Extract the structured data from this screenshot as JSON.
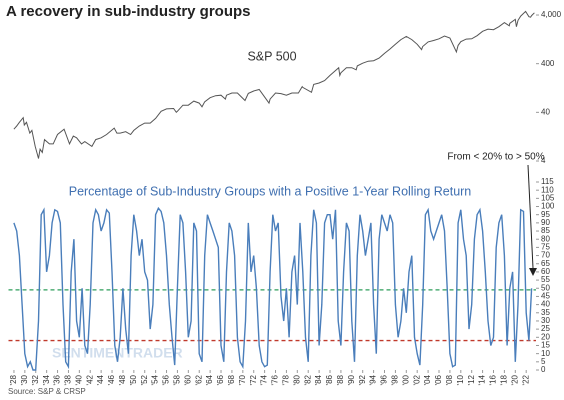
{
  "title": "A recovery in sub-industry groups",
  "source": "Source: S&P & CRSP",
  "watermark": "SENTIMENTRADER",
  "chart_data": [
    {
      "type": "line",
      "title": "S&P 500",
      "log_scale": true,
      "color": "#555555",
      "xlim": [
        1927,
        2023.8
      ],
      "ylim": [
        4,
        5000
      ],
      "yticks": [
        4,
        40,
        400,
        {
          "value": 4000,
          "label": "4,000"
        }
      ],
      "x": [
        1928,
        1928.5,
        1929,
        1929.7,
        1929.9,
        1930.3,
        1930.9,
        1931.3,
        1931.9,
        1932.5,
        1932.8,
        1933.2,
        1933.6,
        1934.5,
        1935.2,
        1936,
        1937.2,
        1938.2,
        1938.9,
        1939.5,
        1940.4,
        1941,
        1942.3,
        1943,
        1944,
        1945,
        1946.4,
        1946.9,
        1947.5,
        1948.5,
        1949.4,
        1950,
        1951,
        1952,
        1953,
        1954,
        1955,
        1956,
        1957.3,
        1957.8,
        1958,
        1959,
        1960,
        1961,
        1962,
        1962.5,
        1963,
        1964,
        1965,
        1966,
        1966.8,
        1967,
        1968,
        1969,
        1970.4,
        1971,
        1972,
        1973,
        1974.8,
        1975,
        1976,
        1977,
        1978,
        1979,
        1980.2,
        1980.9,
        1981,
        1982.6,
        1983,
        1984,
        1985,
        1986,
        1987.6,
        1987.8,
        1988,
        1989,
        1990,
        1990.8,
        1991,
        1992,
        1993,
        1994,
        1995,
        1996,
        1997,
        1998,
        1999,
        2000,
        2001,
        2002,
        2002.8,
        2003,
        2004,
        2005,
        2006,
        2007,
        2008,
        2009.2,
        2009.5,
        2010,
        2011,
        2012,
        2013,
        2014,
        2015,
        2016,
        2017,
        2018,
        2018.9,
        2019,
        2020,
        2020.2,
        2020.5,
        2021,
        2021.9,
        2022.5,
        2022.8,
        2023,
        2023.5
      ],
      "values": [
        18,
        21,
        25,
        31,
        22,
        25,
        15,
        17,
        8,
        4.5,
        7,
        6,
        11,
        9,
        9,
        14,
        18,
        9,
        13,
        12,
        9,
        10,
        8,
        11,
        12,
        14,
        19,
        15,
        15,
        16,
        14,
        17,
        21,
        24,
        24,
        30,
        42,
        47,
        48,
        40,
        42,
        56,
        56,
        68,
        62,
        52,
        66,
        80,
        88,
        90,
        75,
        90,
        100,
        100,
        70,
        98,
        110,
        118,
        62,
        75,
        100,
        97,
        90,
        100,
        100,
        135,
        130,
        103,
        150,
        160,
        180,
        230,
        330,
        230,
        260,
        330,
        330,
        300,
        360,
        410,
        450,
        460,
        520,
        650,
        800,
        1000,
        1250,
        1450,
        1250,
        1000,
        780,
        900,
        1120,
        1200,
        1300,
        1480,
        1350,
        700,
        950,
        1130,
        1280,
        1300,
        1500,
        1850,
        2050,
        2000,
        2300,
        2800,
        2400,
        2700,
        3250,
        2300,
        3100,
        3800,
        4750,
        3700,
        3600,
        3900,
        4450
      ]
    },
    {
      "type": "line",
      "title": "Percentage of Sub-Industry Groups with a Positive 1-Year Rolling Return",
      "color": "#4a7ebb",
      "title_color": "#3f6fb0",
      "xlim": [
        1927,
        2023.8
      ],
      "ylim": [
        0,
        115
      ],
      "yticks": [
        0,
        5,
        10,
        15,
        20,
        25,
        30,
        35,
        40,
        45,
        50,
        55,
        60,
        65,
        70,
        75,
        80,
        85,
        90,
        95,
        100,
        105,
        110,
        115
      ],
      "xticks": [
        {
          "value": 1928,
          "label": "'28"
        },
        {
          "value": 1930,
          "label": "'30"
        },
        {
          "value": 1932,
          "label": "'32"
        },
        {
          "value": 1934,
          "label": "'34"
        },
        {
          "value": 1936,
          "label": "'36"
        },
        {
          "value": 1938,
          "label": "'38"
        },
        {
          "value": 1940,
          "label": "'40"
        },
        {
          "value": 1942,
          "label": "'42"
        },
        {
          "value": 1944,
          "label": "'44"
        },
        {
          "value": 1946,
          "label": "'46"
        },
        {
          "value": 1948,
          "label": "'48"
        },
        {
          "value": 1950,
          "label": "'50"
        },
        {
          "value": 1952,
          "label": "'52"
        },
        {
          "value": 1954,
          "label": "'54"
        },
        {
          "value": 1956,
          "label": "'56"
        },
        {
          "value": 1958,
          "label": "'58"
        },
        {
          "value": 1960,
          "label": "'60"
        },
        {
          "value": 1962,
          "label": "'62"
        },
        {
          "value": 1964,
          "label": "'64"
        },
        {
          "value": 1966,
          "label": "'66"
        },
        {
          "value": 1968,
          "label": "'68"
        },
        {
          "value": 1970,
          "label": "'70"
        },
        {
          "value": 1972,
          "label": "'72"
        },
        {
          "value": 1974,
          "label": "'74"
        },
        {
          "value": 1976,
          "label": "'76"
        },
        {
          "value": 1978,
          "label": "'78"
        },
        {
          "value": 1980,
          "label": "'80"
        },
        {
          "value": 1982,
          "label": "'82"
        },
        {
          "value": 1984,
          "label": "'84"
        },
        {
          "value": 1986,
          "label": "'86"
        },
        {
          "value": 1988,
          "label": "'88"
        },
        {
          "value": 1990,
          "label": "'90"
        },
        {
          "value": 1992,
          "label": "'92"
        },
        {
          "value": 1994,
          "label": "'94"
        },
        {
          "value": 1996,
          "label": "'96"
        },
        {
          "value": 1998,
          "label": "'98"
        },
        {
          "value": 2000,
          "label": "'00"
        },
        {
          "value": 2002,
          "label": "'02"
        },
        {
          "value": 2004,
          "label": "'04"
        },
        {
          "value": 2006,
          "label": "'06"
        },
        {
          "value": 2008,
          "label": "'08"
        },
        {
          "value": 2010,
          "label": "'10"
        },
        {
          "value": 2012,
          "label": "'12"
        },
        {
          "value": 2014,
          "label": "'14"
        },
        {
          "value": 2016,
          "label": "'16"
        },
        {
          "value": 2018,
          "label": "'18"
        },
        {
          "value": 2020,
          "label": "'20"
        },
        {
          "value": 2022,
          "label": "'22"
        }
      ],
      "hlines": [
        {
          "value": 49,
          "color": "#2e9e5b"
        },
        {
          "value": 18,
          "color": "#c0392b"
        }
      ],
      "annotation": "From < 20% to > 50%",
      "x": [
        1928,
        1928.5,
        1929,
        1929.5,
        1930,
        1930.5,
        1931,
        1931.5,
        1932,
        1932.5,
        1933,
        1933.5,
        1934,
        1934.5,
        1935,
        1935.5,
        1936,
        1936.5,
        1937,
        1937.5,
        1938,
        1938.5,
        1939,
        1939.5,
        1940,
        1940.5,
        1941,
        1941.5,
        1942,
        1942.5,
        1943,
        1943.5,
        1944,
        1944.5,
        1945,
        1945.5,
        1946,
        1946.5,
        1947,
        1947.5,
        1948,
        1948.5,
        1949,
        1949.5,
        1950,
        1950.5,
        1951,
        1951.5,
        1952,
        1952.5,
        1953,
        1953.5,
        1954,
        1954.5,
        1955,
        1955.5,
        1956,
        1956.5,
        1957,
        1957.5,
        1958,
        1958.5,
        1959,
        1959.5,
        1960,
        1960.5,
        1961,
        1961.5,
        1962,
        1962.5,
        1963,
        1963.5,
        1964,
        1964.5,
        1965,
        1965.5,
        1966,
        1966.5,
        1967,
        1967.5,
        1968,
        1968.5,
        1969,
        1969.5,
        1970,
        1970.5,
        1971,
        1971.5,
        1972,
        1972.5,
        1973,
        1973.5,
        1974,
        1974.5,
        1975,
        1975.5,
        1976,
        1976.5,
        1977,
        1977.5,
        1978,
        1978.5,
        1979,
        1979.5,
        1980,
        1980.5,
        1981,
        1981.5,
        1982,
        1982.5,
        1983,
        1983.5,
        1984,
        1984.5,
        1985,
        1985.5,
        1986,
        1986.5,
        1987,
        1987.5,
        1988,
        1988.5,
        1989,
        1989.5,
        1990,
        1990.5,
        1991,
        1991.5,
        1992,
        1992.5,
        1993,
        1993.5,
        1994,
        1994.5,
        1995,
        1995.5,
        1996,
        1996.5,
        1997,
        1997.5,
        1998,
        1998.5,
        1999,
        1999.5,
        2000,
        2000.5,
        2001,
        2001.5,
        2002,
        2002.5,
        2003,
        2003.5,
        2004,
        2004.5,
        2005,
        2005.5,
        2006,
        2006.5,
        2007,
        2007.5,
        2008,
        2008.5,
        2009,
        2009.5,
        2010,
        2010.5,
        2011,
        2011.5,
        2012,
        2012.5,
        2013,
        2013.5,
        2014,
        2014.5,
        2015,
        2015.5,
        2016,
        2016.5,
        2017,
        2017.5,
        2018,
        2018.5,
        2019,
        2019.5,
        2020,
        2020.5,
        2021,
        2021.5,
        2022,
        2022.5,
        2023
      ],
      "values": [
        90,
        85,
        70,
        40,
        10,
        2,
        5,
        0,
        0,
        30,
        95,
        98,
        60,
        70,
        90,
        98,
        97,
        90,
        40,
        5,
        2,
        60,
        80,
        30,
        20,
        50,
        15,
        10,
        40,
        90,
        98,
        95,
        85,
        90,
        98,
        96,
        60,
        15,
        5,
        20,
        50,
        25,
        10,
        70,
        95,
        85,
        70,
        80,
        60,
        55,
        25,
        40,
        95,
        99,
        97,
        90,
        70,
        40,
        20,
        3,
        50,
        95,
        90,
        60,
        20,
        30,
        90,
        85,
        10,
        5,
        70,
        95,
        90,
        85,
        80,
        75,
        15,
        5,
        60,
        90,
        85,
        70,
        20,
        5,
        2,
        30,
        90,
        60,
        70,
        50,
        15,
        5,
        2,
        3,
        60,
        95,
        85,
        90,
        45,
        30,
        50,
        20,
        60,
        70,
        40,
        90,
        60,
        20,
        5,
        70,
        98,
        90,
        15,
        40,
        90,
        95,
        95,
        80,
        98,
        30,
        15,
        60,
        90,
        85,
        30,
        5,
        70,
        95,
        85,
        70,
        80,
        90,
        40,
        10,
        80,
        95,
        90,
        85,
        95,
        90,
        40,
        20,
        30,
        50,
        35,
        60,
        70,
        20,
        10,
        3,
        40,
        95,
        98,
        85,
        80,
        85,
        90,
        95,
        85,
        50,
        10,
        2,
        3,
        90,
        98,
        80,
        70,
        25,
        40,
        80,
        95,
        98,
        85,
        60,
        30,
        15,
        20,
        75,
        90,
        95,
        70,
        15,
        50,
        60,
        5,
        40,
        98,
        97,
        35,
        18,
        50
      ]
    }
  ]
}
